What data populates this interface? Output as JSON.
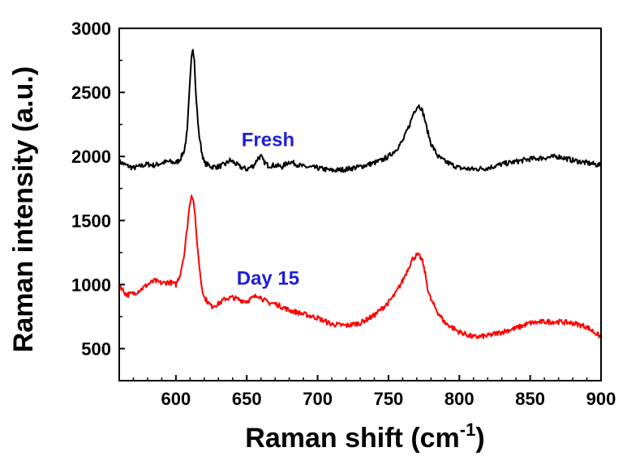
{
  "chart_data": {
    "type": "line",
    "xlabel": "Raman shift (cm",
    "xlabel_sup": "-1",
    "xlabel_end": ")",
    "ylabel": "Raman intensity (a.u.)",
    "xlim": [
      560,
      900
    ],
    "ylim": [
      250,
      3000
    ],
    "xticks": [
      600,
      650,
      700,
      750,
      800,
      850,
      900
    ],
    "yticks": [
      500,
      1000,
      1500,
      2000,
      2500,
      3000
    ],
    "grid": false,
    "annotations": [
      {
        "text": "Fresh",
        "x": 665,
        "y": 2080,
        "color": "#1f1fd6"
      },
      {
        "text": "Day 15",
        "x": 665,
        "y": 1000,
        "color": "#1f1fd6"
      }
    ],
    "series": [
      {
        "label_ref": "Fresh",
        "color": "#000000",
        "x": [
          560,
          565,
          570,
          575,
          580,
          585,
          590,
          595,
          600,
          603,
          606,
          608,
          610,
          611,
          612,
          613,
          614,
          616,
          618,
          620,
          625,
          630,
          635,
          638,
          640,
          645,
          650,
          655,
          658,
          660,
          662,
          665,
          670,
          675,
          680,
          690,
          700,
          710,
          720,
          730,
          740,
          745,
          750,
          755,
          760,
          765,
          768,
          771,
          773,
          775,
          777,
          780,
          785,
          790,
          800,
          810,
          820,
          830,
          840,
          850,
          860,
          870,
          880,
          890,
          900
        ],
        "y": [
          1960,
          1930,
          1910,
          1925,
          1940,
          1930,
          1950,
          1960,
          1950,
          1980,
          2050,
          2200,
          2600,
          2800,
          2850,
          2750,
          2500,
          2200,
          2050,
          1950,
          1920,
          1920,
          1940,
          1970,
          1960,
          1920,
          1900,
          1930,
          1990,
          2000,
          1960,
          1930,
          1930,
          1920,
          1960,
          1920,
          1910,
          1890,
          1900,
          1920,
          1950,
          1970,
          2000,
          2050,
          2120,
          2250,
          2350,
          2400,
          2380,
          2320,
          2220,
          2100,
          2000,
          1960,
          1910,
          1900,
          1910,
          1940,
          1960,
          1980,
          1990,
          2000,
          1970,
          1950,
          1930
        ]
      },
      {
        "label_ref": "Day 15",
        "color": "#ff0000",
        "x": [
          560,
          565,
          570,
          575,
          580,
          585,
          590,
          595,
          600,
          603,
          606,
          608,
          610,
          611,
          612,
          613,
          614,
          616,
          618,
          620,
          625,
          630,
          635,
          640,
          645,
          650,
          655,
          658,
          660,
          662,
          665,
          670,
          680,
          690,
          700,
          710,
          720,
          730,
          740,
          750,
          755,
          760,
          764,
          767,
          770,
          772,
          774,
          776,
          778,
          780,
          785,
          790,
          800,
          810,
          820,
          830,
          840,
          850,
          860,
          870,
          880,
          890,
          900
        ],
        "y": [
          1000,
          920,
          930,
          960,
          1000,
          1030,
          1010,
          1020,
          1000,
          1080,
          1250,
          1450,
          1650,
          1700,
          1680,
          1600,
          1450,
          1200,
          1000,
          900,
          830,
          850,
          890,
          900,
          880,
          870,
          900,
          920,
          900,
          880,
          860,
          850,
          800,
          770,
          740,
          690,
          680,
          700,
          760,
          860,
          930,
          1030,
          1130,
          1200,
          1230,
          1220,
          1180,
          1080,
          950,
          880,
          780,
          700,
          630,
          590,
          600,
          630,
          660,
          700,
          710,
          710,
          700,
          670,
          590
        ]
      }
    ]
  }
}
